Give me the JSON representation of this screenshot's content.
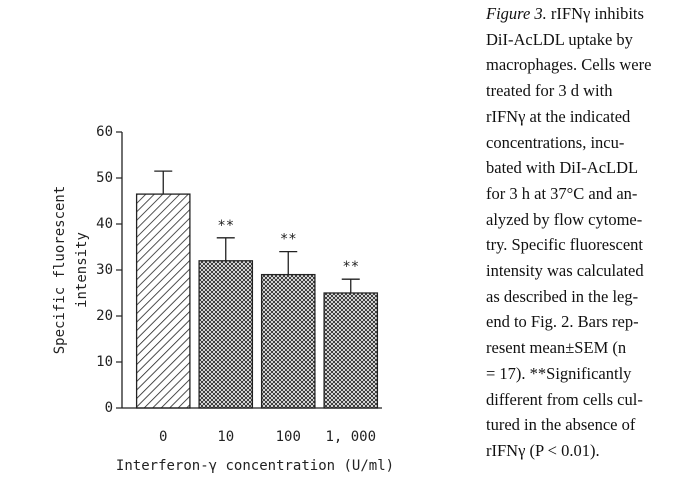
{
  "chart_data": {
    "type": "bar",
    "categories": [
      "0",
      "10",
      "100",
      "1, 000"
    ],
    "values": [
      46.5,
      32,
      29,
      25
    ],
    "errors": [
      5,
      5,
      5,
      3
    ],
    "annotations": [
      null,
      "**",
      "**",
      "**"
    ],
    "hatch": [
      "diagonal",
      "cross",
      "cross",
      "cross"
    ],
    "color": "#222222",
    "ylim": [
      0,
      60
    ],
    "yticks": [
      0,
      10,
      20,
      30,
      40,
      50,
      60
    ],
    "ylabel": [
      "Specific fluorescent",
      "intensity"
    ],
    "xlabel": "Interferon-γ concentration (U/ml)"
  },
  "caption": {
    "label": "Figure 3.",
    "lines": [
      "rIFNγ inhibits",
      "DiI-AcLDL uptake by",
      "macrophages. Cells were",
      "treated for 3 d with",
      "rIFNγ at the indicated",
      "concentrations, incu-",
      "bated with DiI-AcLDL",
      "for 3 h at 37°C and an-",
      "alyzed by flow cytome-",
      "try. Specific fluorescent",
      "intensity was calculated",
      "as described in the leg-",
      "end to Fig. 2. Bars rep-",
      "resent mean±SEM (n",
      "= 17). **Significantly",
      "different from cells cul-",
      "tured in the absence of",
      "rIFNγ (P < 0.01)."
    ]
  }
}
